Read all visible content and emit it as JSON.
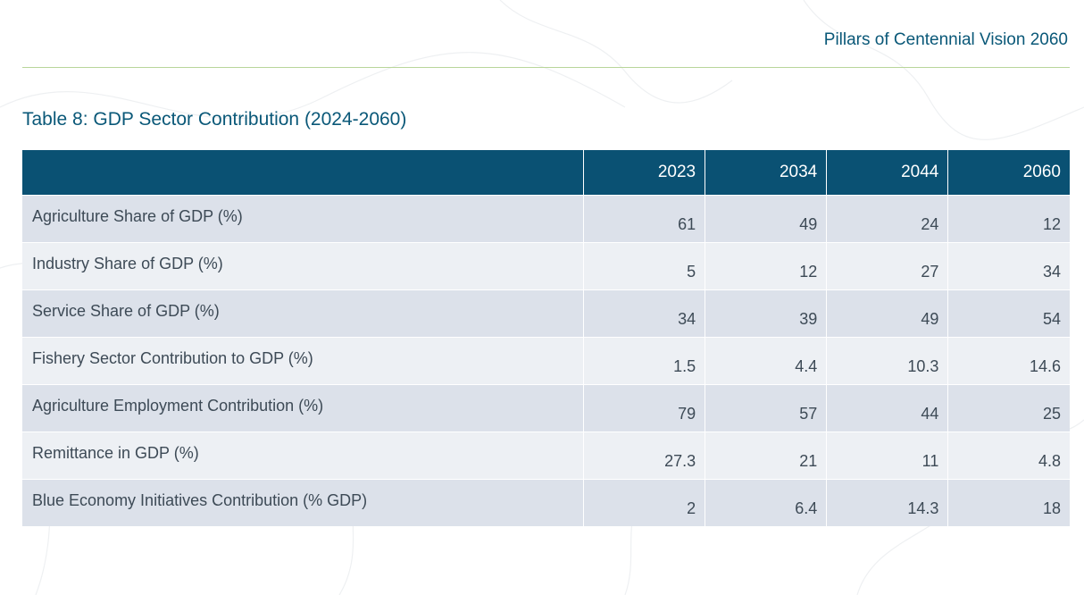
{
  "header": {
    "title": "Pillars of Centennial Vision 2060"
  },
  "caption": "Table 8: GDP Sector Contribution (2024-2060)",
  "table": {
    "columns": [
      "",
      "2023",
      "2034",
      "2044",
      "2060"
    ],
    "rows": [
      {
        "label": "Agriculture Share of GDP (%)",
        "values": [
          "61",
          "49",
          "24",
          "12"
        ]
      },
      {
        "label": "Industry Share of GDP (%)",
        "values": [
          "5",
          "12",
          "27",
          "34"
        ]
      },
      {
        "label": "Service Share of GDP (%)",
        "values": [
          "34",
          "39",
          "49",
          "54"
        ]
      },
      {
        "label": "Fishery Sector Contribution to GDP (%)",
        "values": [
          "1.5",
          "4.4",
          "10.3",
          "14.6"
        ]
      },
      {
        "label": "Agriculture Employment Contribution (%)",
        "values": [
          "79",
          "57",
          "44",
          "25"
        ]
      },
      {
        "label": "Remittance in GDP (%)",
        "values": [
          "27.3",
          "21",
          "11",
          "4.8"
        ]
      },
      {
        "label": "Blue Economy Initiatives Contribution (% GDP)",
        "values": [
          "2",
          "6.4",
          "14.3",
          "18"
        ]
      }
    ]
  },
  "colors": {
    "accent": "#0a5878",
    "header_bg": "#0a5173",
    "rule": "#b9d69a",
    "row_odd": "#dce1ea",
    "row_even": "#edf0f4"
  }
}
